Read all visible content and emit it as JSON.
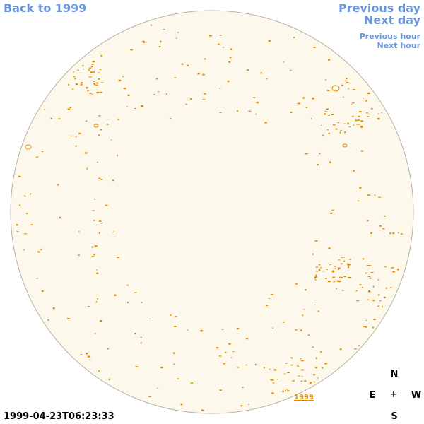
{
  "nav": {
    "back_label": "Back to 1999",
    "prev_day_label": "Previous day",
    "next_day_label": "Next day",
    "prev_hour_label": "Previous hour",
    "next_hour_label": "Next hour"
  },
  "image": {
    "year_link": "1999",
    "timestamp": "1999-04-23T06:23:33"
  },
  "compass": {
    "north": "N",
    "east": "E",
    "center": "+",
    "west": "W",
    "south": "S"
  },
  "colors": {
    "link": "#6b95dc",
    "disk_fill": "#fdf8ec",
    "disk_border": "#b8b0a4",
    "contour": "#e08a00"
  }
}
